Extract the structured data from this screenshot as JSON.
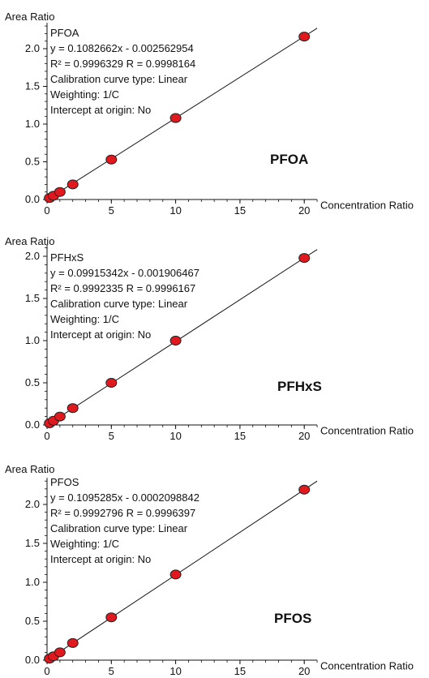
{
  "chart_data": [
    {
      "type": "scatter",
      "title": "PFOA",
      "xlabel": "Concentration Ratio",
      "ylabel": "Area Ratio",
      "xlim": [
        0,
        21
      ],
      "ylim": [
        0,
        2.3
      ],
      "x_ticks": [
        "0",
        "5",
        "10",
        "15",
        "20"
      ],
      "y_ticks": [
        "0.0",
        "0.5",
        "1.0",
        "1.5",
        "2.0"
      ],
      "series": [
        {
          "x": [
            0.2,
            0.5,
            1,
            2,
            5,
            10,
            20
          ],
          "y": [
            0.02,
            0.05,
            0.1,
            0.2,
            0.53,
            1.08,
            2.16
          ]
        }
      ],
      "fit": {
        "slope": 0.1082662,
        "intercept": -0.002562954
      },
      "annotations": [
        "PFOA",
        "y = 0.1082662x - 0.002562954",
        "R² = 0.9996329  R = 0.9998164",
        "Calibration curve type: Linear",
        "Weighting: 1/C",
        "Intercept at origin: No"
      ],
      "label": "PFOA"
    },
    {
      "type": "scatter",
      "title": "PFHxS",
      "xlabel": "Concentration Ratio",
      "ylabel": "Area Ratio",
      "xlim": [
        0,
        21
      ],
      "ylim": [
        0,
        2.1
      ],
      "x_ticks": [
        "0",
        "5",
        "10",
        "15",
        "20"
      ],
      "y_ticks": [
        "0.0",
        "0.5",
        "1.0",
        "1.5",
        "2.0"
      ],
      "series": [
        {
          "x": [
            0.2,
            0.5,
            1,
            2,
            5,
            10,
            20
          ],
          "y": [
            0.02,
            0.05,
            0.1,
            0.2,
            0.5,
            1.0,
            1.98
          ]
        }
      ],
      "fit": {
        "slope": 0.09915342,
        "intercept": -0.001906467
      },
      "annotations": [
        "PFHxS",
        "y = 0.09915342x - 0.001906467",
        "R² = 0.9992335    R = 0.9996167",
        "Calibration curve type: Linear",
        "Weighting: 1/C",
        "Intercept at origin: No"
      ],
      "label": "PFHxS"
    },
    {
      "type": "scatter",
      "title": "PFOS",
      "xlabel": "Concentration Ratio",
      "ylabel": "Area Ratio",
      "xlim": [
        0,
        21
      ],
      "ylim": [
        0,
        2.3
      ],
      "x_ticks": [
        "0",
        "5",
        "10",
        "15",
        "20"
      ],
      "y_ticks": [
        "0.0",
        "0.5",
        "1.0",
        "1.5",
        "2.0"
      ],
      "series": [
        {
          "x": [
            0.2,
            0.5,
            1,
            2,
            5,
            10,
            20
          ],
          "y": [
            0.02,
            0.05,
            0.1,
            0.22,
            0.55,
            1.1,
            2.19
          ]
        }
      ],
      "fit": {
        "slope": 0.1095285,
        "intercept": -0.0002098842
      },
      "annotations": [
        "PFOS",
        "y = 0.1095285x - 0.0002098842",
        "R² = 0.9992796    R = 0.9996397",
        "Calibration curve type: Linear",
        "Weighting: 1/C",
        "Intercept at origin: No"
      ],
      "label": "PFOS"
    }
  ]
}
